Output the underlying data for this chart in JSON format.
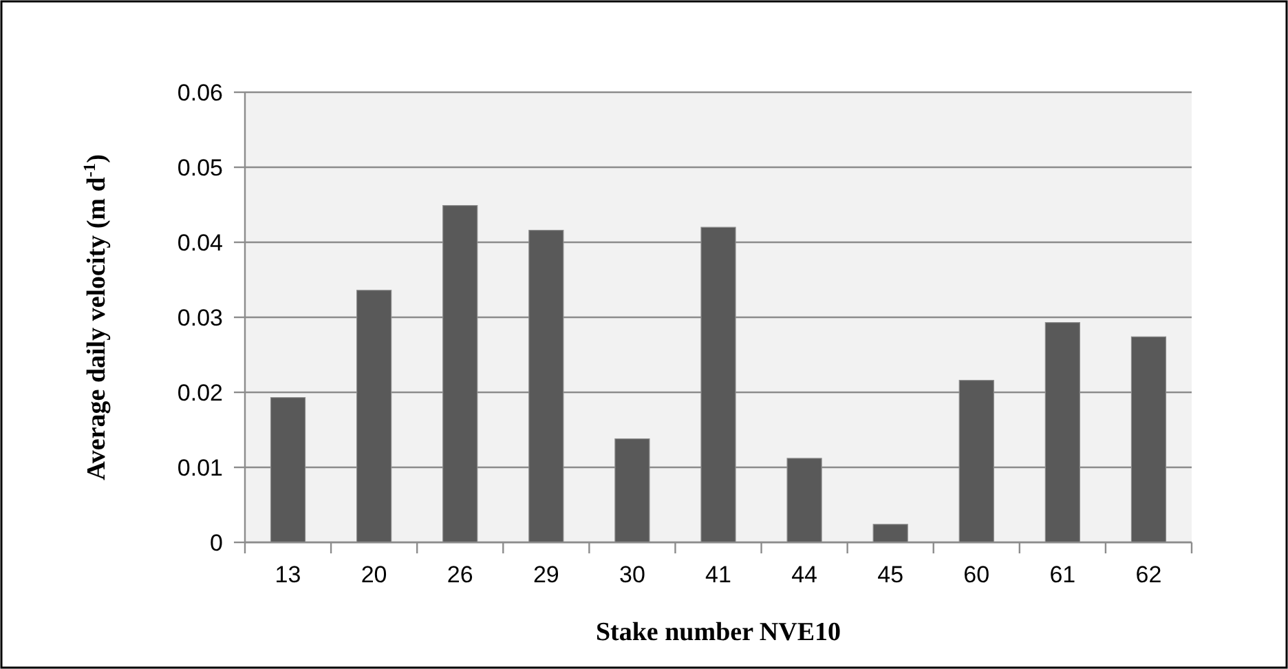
{
  "chart_data": {
    "type": "bar",
    "xlabel": "Stake number NVE10",
    "ylabel": "Average daily velocity (m d$^{-1}$)",
    "categories": [
      "13",
      "20",
      "26",
      "29",
      "30",
      "41",
      "44",
      "45",
      "60",
      "61",
      "62"
    ],
    "values": [
      0.0193,
      0.0336,
      0.0449,
      0.0416,
      0.0138,
      0.042,
      0.0112,
      0.0024,
      0.0216,
      0.0293,
      0.0274
    ],
    "color": "#595959",
    "ylim": [
      0,
      0.06
    ],
    "yticks": [
      0,
      0.01,
      0.02,
      0.03,
      0.04,
      0.05,
      0.06
    ],
    "grid": "y"
  }
}
